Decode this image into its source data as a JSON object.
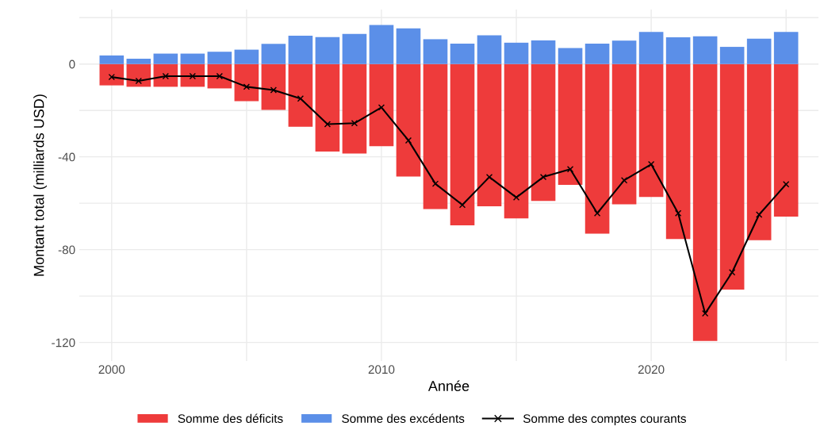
{
  "chart_data": {
    "type": "bar",
    "xlabel": "Année",
    "ylabel": "Montant total (milliards USD)",
    "stacked": true,
    "x": [
      2000,
      2001,
      2002,
      2003,
      2004,
      2005,
      2006,
      2007,
      2008,
      2009,
      2010,
      2011,
      2012,
      2013,
      2014,
      2015,
      2016,
      2017,
      2018,
      2019,
      2020,
      2021,
      2022,
      2023,
      2024,
      2025
    ],
    "series": [
      {
        "name": "Somme des déficits",
        "color": "#ee3b3b",
        "values": [
          -9.2,
          -9.8,
          -9.8,
          -9.8,
          -10.5,
          -16,
          -19.8,
          -27,
          -37.7,
          -38.6,
          -35.4,
          -48.5,
          -62.5,
          -69.5,
          -61.3,
          -66.5,
          -59,
          -52.1,
          -73.1,
          -60.5,
          -57.3,
          -75.4,
          -119.4,
          -97.2,
          -75.9,
          -65.8
        ]
      },
      {
        "name": "Somme des excédents",
        "color": "#5b8fe8",
        "values": [
          3.7,
          2.3,
          4.5,
          4.5,
          5.3,
          6.2,
          8.7,
          12.2,
          11.6,
          13,
          16.8,
          15.4,
          10.7,
          8.8,
          12.4,
          9.2,
          10.2,
          6.9,
          8.8,
          10.1,
          13.8,
          11.5,
          12,
          7.4,
          10.9,
          13.8
        ]
      },
      {
        "name": "Somme des comptes courants",
        "type": "line",
        "color": "#000000",
        "marker": "cross",
        "values": [
          -5.6,
          -7.3,
          -5.2,
          -5.2,
          -5.2,
          -9.8,
          -11.2,
          -14.9,
          -25.9,
          -25.5,
          -18.7,
          -32.9,
          -51.6,
          -60.7,
          -48.7,
          -57.5,
          -48.7,
          -45.3,
          -64.3,
          -50.1,
          -43.2,
          -64.3,
          -107.5,
          -89.8,
          -64.9,
          -51.8
        ]
      }
    ],
    "xlim": [
      1998.8,
      2026.2
    ],
    "ylim": [
      -128,
      23.5
    ],
    "xticks": [
      2000,
      {
        "value": 2005,
        "label": null
      },
      2010,
      {
        "value": 2015,
        "label": null
      },
      2020,
      {
        "value": 2025,
        "label": null
      }
    ],
    "yticks": [
      {
        "value": -120,
        "label": "-120"
      },
      {
        "value": -100,
        "label": null
      },
      {
        "value": -80,
        "label": "-80"
      },
      {
        "value": -60,
        "label": null
      },
      {
        "value": -40,
        "label": "-40"
      },
      {
        "value": -20,
        "label": null
      },
      0,
      {
        "value": 20,
        "label": null
      }
    ],
    "grid": true,
    "legend": "bottom"
  }
}
